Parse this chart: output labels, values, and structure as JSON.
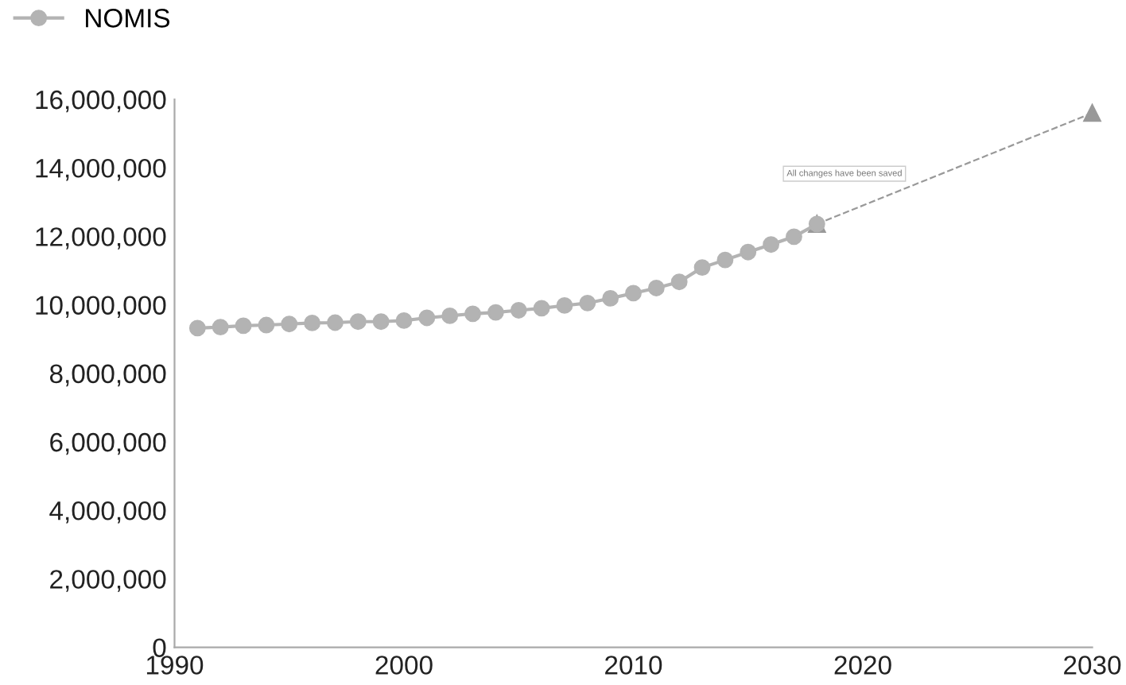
{
  "chart_data": {
    "type": "line",
    "annotations": [
      "All changes have been saved"
    ],
    "xlim": [
      1990,
      2030
    ],
    "xticks": [
      1990,
      2000,
      2010,
      2020,
      2030
    ],
    "ylim": [
      0,
      16000000
    ],
    "yticks": [
      0,
      {
        "value": 2000000,
        "label": "2,000,000"
      },
      {
        "value": 4000000,
        "label": "4,000,000"
      },
      {
        "value": 6000000,
        "label": "6,000,000"
      },
      {
        "value": 8000000,
        "label": "8,000,000"
      },
      {
        "value": 10000000,
        "label": "10,000,000"
      },
      {
        "value": 12000000,
        "label": "12,000,000"
      },
      {
        "value": 14000000,
        "label": "14,000,000"
      },
      {
        "value": 16000000,
        "label": "16,000,000"
      }
    ],
    "grid": false,
    "legend": "top left",
    "series": [
      {
        "name": "NOMIS",
        "color": "#b3b3b3",
        "marker": "circle",
        "line_style": "solid",
        "x": [
          1991,
          1992,
          1993,
          1994,
          1995,
          1996,
          1997,
          1998,
          1999,
          2000,
          2001,
          2002,
          2003,
          2004,
          2005,
          2006,
          2007,
          2008,
          2009,
          2010,
          2011,
          2012,
          2013,
          2014,
          2015,
          2016,
          2017,
          2018
        ],
        "values": [
          9320000,
          9350000,
          9390000,
          9410000,
          9440000,
          9470000,
          9480000,
          9510000,
          9510000,
          9540000,
          9620000,
          9680000,
          9740000,
          9780000,
          9840000,
          9900000,
          9980000,
          10050000,
          10190000,
          10340000,
          10490000,
          10670000,
          11090000,
          11310000,
          11540000,
          11760000,
          11990000,
          12360000
        ]
      },
      {
        "color": "#999999",
        "marker": "triangle",
        "line_style": "dashed",
        "x": [
          2018,
          2030
        ],
        "values": [
          12360000,
          15600000
        ]
      }
    ]
  }
}
